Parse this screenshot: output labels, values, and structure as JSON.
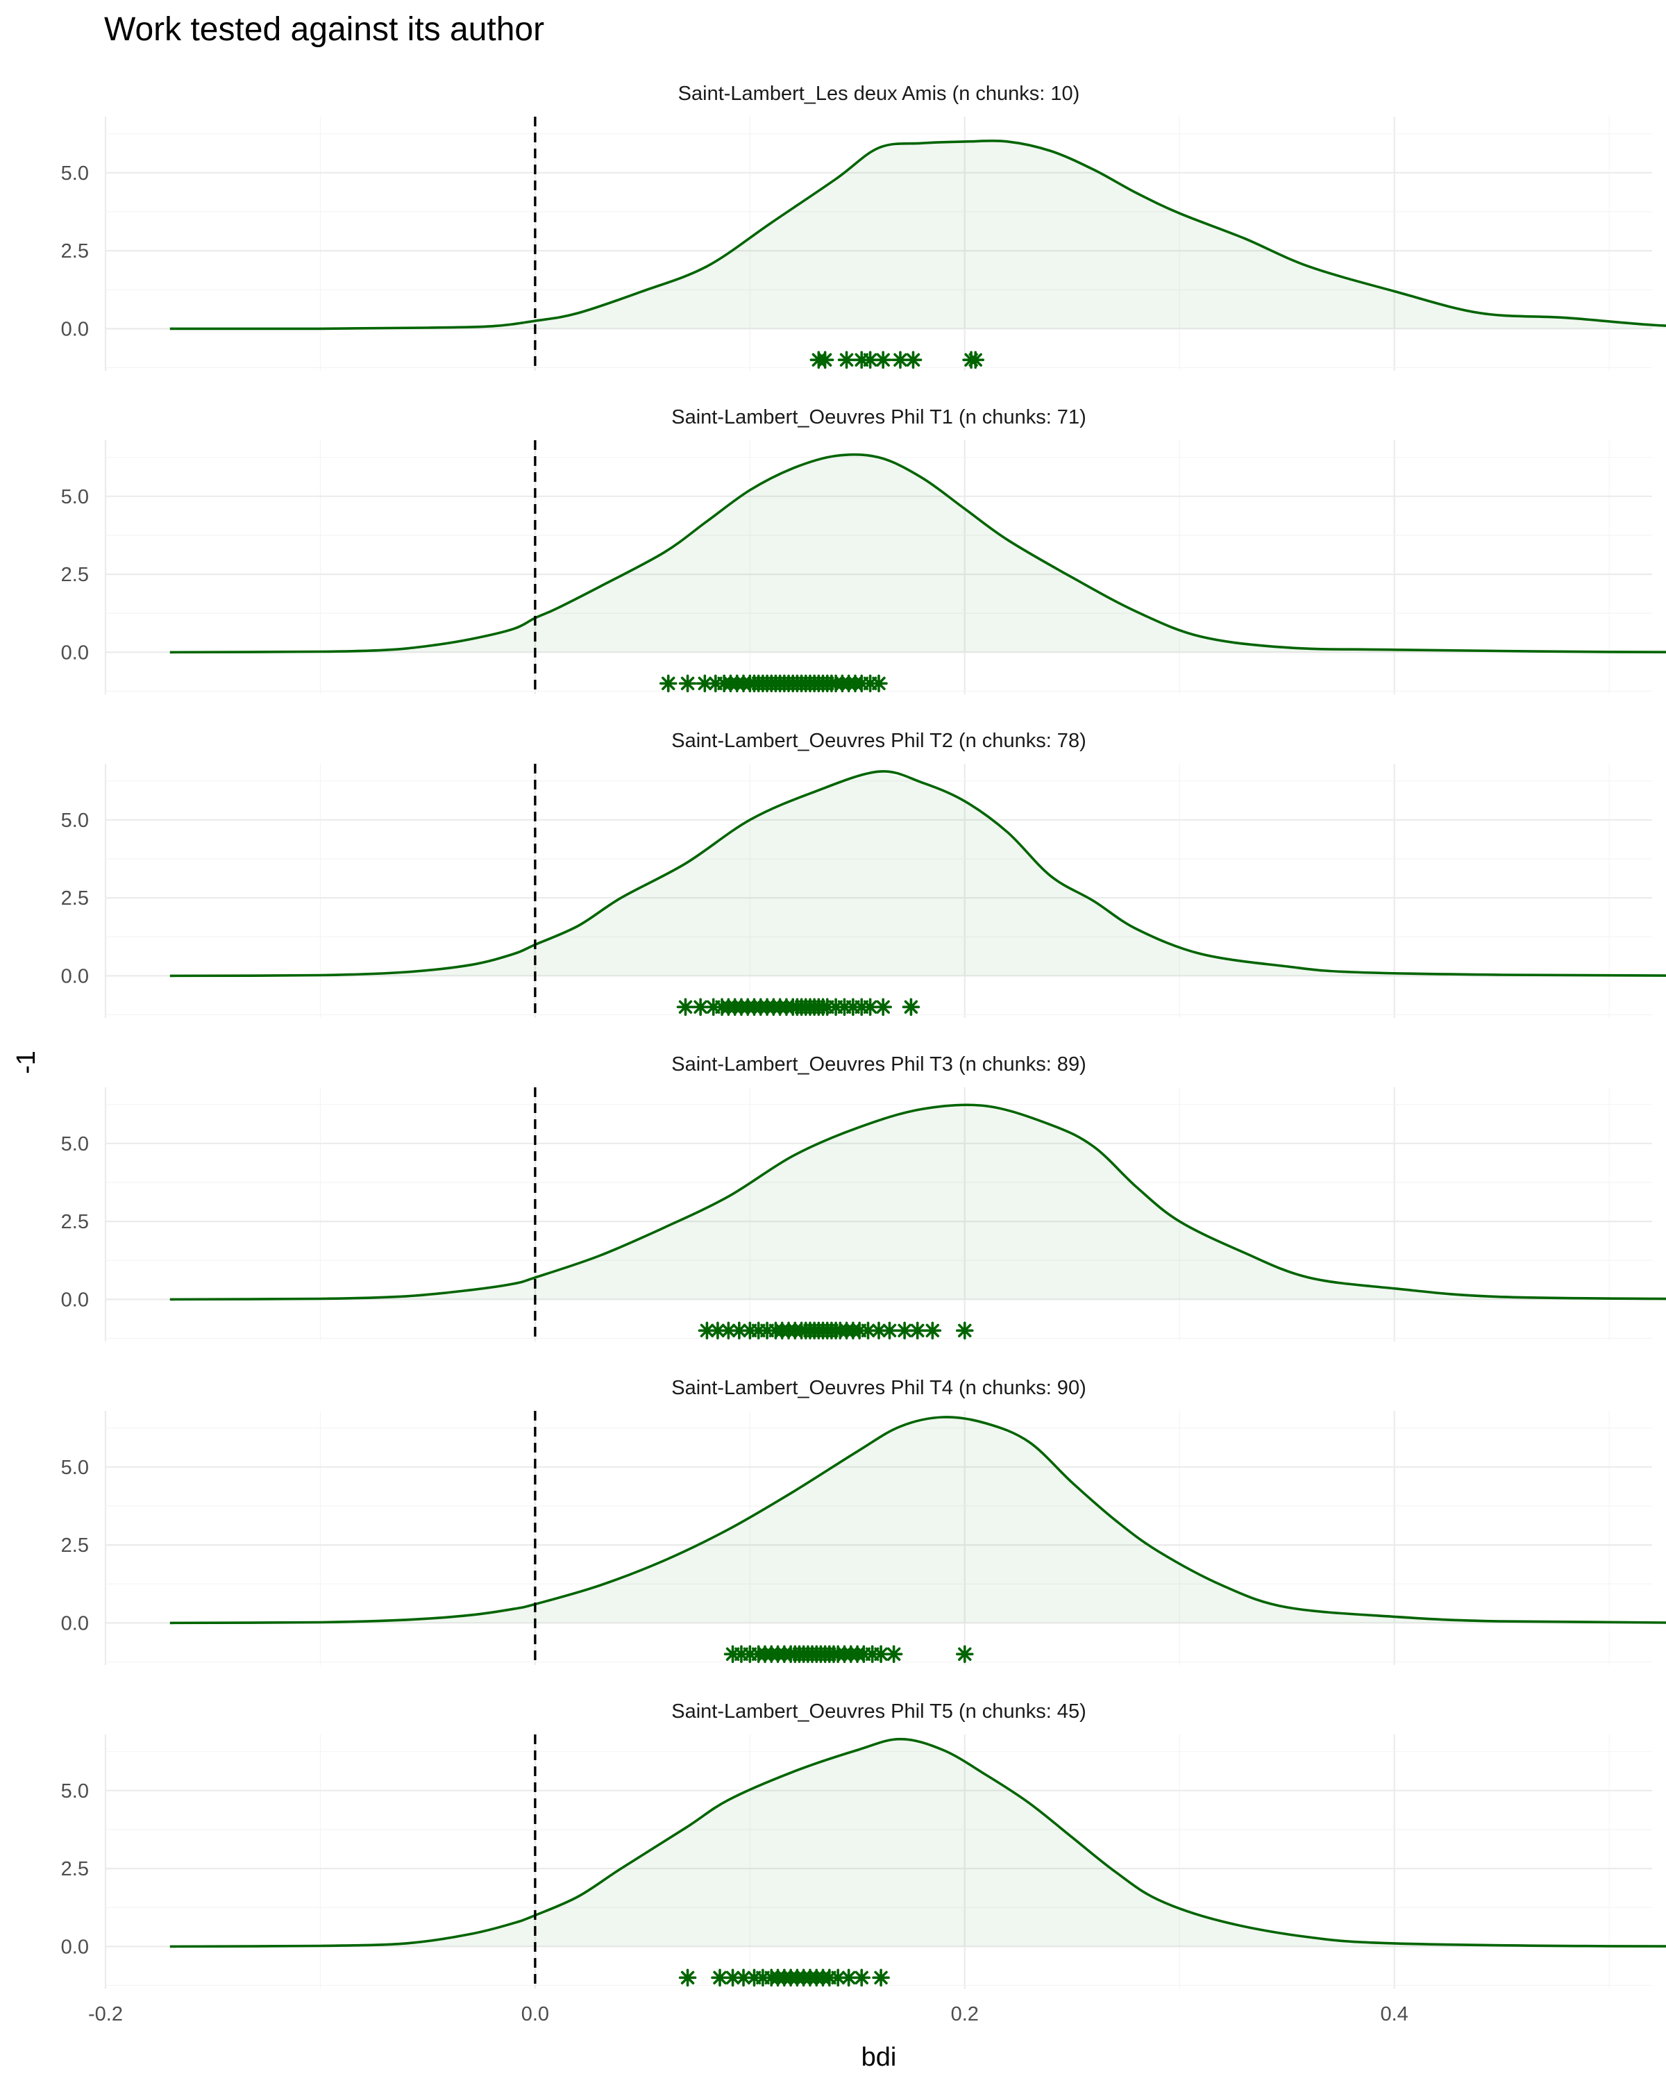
{
  "chart_data": {
    "type": "density",
    "title": "Work tested against its author",
    "xlabel": "bdi",
    "ylabel": "-1",
    "xlim": [
      -0.2,
      0.52
    ],
    "ylim": [
      -1.35,
      6.8
    ],
    "x_ticks": [
      -0.2,
      0.0,
      0.2,
      0.4
    ],
    "x_tick_labels": [
      "-0.2",
      "0.0",
      "0.2",
      "0.4"
    ],
    "y_ticks": [
      0,
      2.5,
      5
    ],
    "y_tick_labels": [
      "0.0",
      "2.5",
      "5.0"
    ],
    "reference_line_x": 0,
    "grid": true,
    "color": "#006400",
    "facets": [
      {
        "label": "Saint-Lambert_Les deux Amis (n chunks: 10)",
        "density": [
          [
            -0.17,
            0
          ],
          [
            -0.1,
            0
          ],
          [
            -0.05,
            0.03
          ],
          [
            -0.02,
            0.08
          ],
          [
            0,
            0.25
          ],
          [
            0.02,
            0.5
          ],
          [
            0.05,
            1.2
          ],
          [
            0.08,
            2.0
          ],
          [
            0.11,
            3.4
          ],
          [
            0.14,
            4.8
          ],
          [
            0.16,
            5.8
          ],
          [
            0.18,
            5.95
          ],
          [
            0.2,
            6.0
          ],
          [
            0.22,
            6.0
          ],
          [
            0.24,
            5.7
          ],
          [
            0.26,
            5.1
          ],
          [
            0.28,
            4.35
          ],
          [
            0.3,
            3.7
          ],
          [
            0.33,
            2.9
          ],
          [
            0.36,
            2.0
          ],
          [
            0.4,
            1.2
          ],
          [
            0.44,
            0.5
          ],
          [
            0.48,
            0.35
          ],
          [
            0.52,
            0.12
          ],
          [
            0.56,
            0.02
          ],
          [
            0.62,
            0
          ],
          [
            0.67,
            0
          ]
        ],
        "points": [
          0.132,
          0.135,
          0.145,
          0.152,
          0.156,
          0.162,
          0.17,
          0.176,
          0.205,
          0.203
        ]
      },
      {
        "label": "Saint-Lambert_Oeuvres Phil T1 (n chunks: 71)",
        "density": [
          [
            -0.17,
            0
          ],
          [
            -0.1,
            0.02
          ],
          [
            -0.07,
            0.07
          ],
          [
            -0.05,
            0.2
          ],
          [
            -0.03,
            0.42
          ],
          [
            -0.01,
            0.75
          ],
          [
            0,
            1.1
          ],
          [
            0.01,
            1.4
          ],
          [
            0.03,
            2.1
          ],
          [
            0.06,
            3.2
          ],
          [
            0.08,
            4.2
          ],
          [
            0.1,
            5.2
          ],
          [
            0.12,
            5.9
          ],
          [
            0.14,
            6.3
          ],
          [
            0.16,
            6.25
          ],
          [
            0.18,
            5.6
          ],
          [
            0.2,
            4.6
          ],
          [
            0.22,
            3.6
          ],
          [
            0.25,
            2.4
          ],
          [
            0.28,
            1.3
          ],
          [
            0.31,
            0.5
          ],
          [
            0.35,
            0.15
          ],
          [
            0.4,
            0.08
          ],
          [
            0.5,
            0.01
          ],
          [
            0.6,
            0
          ],
          [
            0.67,
            0
          ]
        ],
        "points": [
          0.062,
          0.071,
          0.079,
          0.084,
          0.088,
          0.091,
          0.094,
          0.097,
          0.1,
          0.102,
          0.104,
          0.106,
          0.108,
          0.11,
          0.112,
          0.114,
          0.116,
          0.118,
          0.12,
          0.122,
          0.124,
          0.126,
          0.128,
          0.13,
          0.132,
          0.134,
          0.136,
          0.138,
          0.14,
          0.143,
          0.146,
          0.149,
          0.152,
          0.156,
          0.16
        ]
      },
      {
        "label": "Saint-Lambert_Oeuvres Phil T2 (n chunks: 78)",
        "density": [
          [
            -0.17,
            0
          ],
          [
            -0.1,
            0.02
          ],
          [
            -0.06,
            0.12
          ],
          [
            -0.03,
            0.35
          ],
          [
            -0.01,
            0.7
          ],
          [
            0,
            1.0
          ],
          [
            0.02,
            1.6
          ],
          [
            0.04,
            2.5
          ],
          [
            0.07,
            3.6
          ],
          [
            0.1,
            5.0
          ],
          [
            0.13,
            5.9
          ],
          [
            0.16,
            6.55
          ],
          [
            0.18,
            6.2
          ],
          [
            0.2,
            5.6
          ],
          [
            0.22,
            4.6
          ],
          [
            0.24,
            3.2
          ],
          [
            0.26,
            2.4
          ],
          [
            0.28,
            1.5
          ],
          [
            0.31,
            0.7
          ],
          [
            0.35,
            0.3
          ],
          [
            0.38,
            0.12
          ],
          [
            0.45,
            0.03
          ],
          [
            0.55,
            0
          ],
          [
            0.67,
            0
          ]
        ],
        "points": [
          0.07,
          0.077,
          0.083,
          0.087,
          0.09,
          0.093,
          0.096,
          0.099,
          0.102,
          0.105,
          0.108,
          0.111,
          0.114,
          0.117,
          0.12,
          0.122,
          0.124,
          0.126,
          0.128,
          0.13,
          0.132,
          0.134,
          0.136,
          0.14,
          0.144,
          0.148,
          0.152,
          0.156,
          0.162,
          0.175
        ]
      },
      {
        "label": "Saint-Lambert_Oeuvres Phil T3 (n chunks: 89)",
        "density": [
          [
            -0.17,
            0
          ],
          [
            -0.1,
            0.02
          ],
          [
            -0.06,
            0.1
          ],
          [
            -0.03,
            0.3
          ],
          [
            -0.01,
            0.5
          ],
          [
            0,
            0.7
          ],
          [
            0.03,
            1.4
          ],
          [
            0.06,
            2.3
          ],
          [
            0.09,
            3.3
          ],
          [
            0.12,
            4.6
          ],
          [
            0.15,
            5.5
          ],
          [
            0.18,
            6.1
          ],
          [
            0.21,
            6.2
          ],
          [
            0.24,
            5.6
          ],
          [
            0.26,
            4.9
          ],
          [
            0.28,
            3.6
          ],
          [
            0.3,
            2.5
          ],
          [
            0.33,
            1.5
          ],
          [
            0.36,
            0.7
          ],
          [
            0.4,
            0.35
          ],
          [
            0.45,
            0.08
          ],
          [
            0.55,
            0.01
          ],
          [
            0.67,
            0
          ]
        ],
        "points": [
          0.08,
          0.085,
          0.09,
          0.095,
          0.1,
          0.104,
          0.108,
          0.112,
          0.115,
          0.118,
          0.121,
          0.124,
          0.126,
          0.128,
          0.13,
          0.132,
          0.134,
          0.136,
          0.138,
          0.14,
          0.142,
          0.145,
          0.148,
          0.151,
          0.155,
          0.16,
          0.165,
          0.172,
          0.178,
          0.185,
          0.2
        ]
      },
      {
        "label": "Saint-Lambert_Oeuvres Phil T4 (n chunks: 90)",
        "density": [
          [
            -0.17,
            0
          ],
          [
            -0.1,
            0.02
          ],
          [
            -0.06,
            0.1
          ],
          [
            -0.03,
            0.25
          ],
          [
            -0.01,
            0.45
          ],
          [
            0,
            0.6
          ],
          [
            0.03,
            1.2
          ],
          [
            0.06,
            2.0
          ],
          [
            0.09,
            3.0
          ],
          [
            0.12,
            4.2
          ],
          [
            0.15,
            5.5
          ],
          [
            0.17,
            6.3
          ],
          [
            0.19,
            6.6
          ],
          [
            0.21,
            6.4
          ],
          [
            0.23,
            5.8
          ],
          [
            0.25,
            4.5
          ],
          [
            0.27,
            3.3
          ],
          [
            0.29,
            2.3
          ],
          [
            0.32,
            1.2
          ],
          [
            0.35,
            0.5
          ],
          [
            0.4,
            0.2
          ],
          [
            0.45,
            0.05
          ],
          [
            0.55,
            0
          ],
          [
            0.67,
            0
          ]
        ],
        "points": [
          0.092,
          0.096,
          0.1,
          0.104,
          0.107,
          0.11,
          0.113,
          0.116,
          0.119,
          0.121,
          0.123,
          0.125,
          0.127,
          0.129,
          0.131,
          0.133,
          0.135,
          0.137,
          0.139,
          0.141,
          0.144,
          0.147,
          0.15,
          0.153,
          0.157,
          0.161,
          0.167,
          0.2
        ]
      },
      {
        "label": "Saint-Lambert_Oeuvres Phil T5 (n chunks: 45)",
        "density": [
          [
            -0.17,
            0
          ],
          [
            -0.1,
            0.02
          ],
          [
            -0.06,
            0.1
          ],
          [
            -0.03,
            0.4
          ],
          [
            -0.01,
            0.75
          ],
          [
            0,
            1.0
          ],
          [
            0.02,
            1.6
          ],
          [
            0.04,
            2.5
          ],
          [
            0.07,
            3.8
          ],
          [
            0.09,
            4.7
          ],
          [
            0.12,
            5.6
          ],
          [
            0.15,
            6.3
          ],
          [
            0.17,
            6.65
          ],
          [
            0.19,
            6.3
          ],
          [
            0.21,
            5.5
          ],
          [
            0.23,
            4.6
          ],
          [
            0.25,
            3.5
          ],
          [
            0.27,
            2.4
          ],
          [
            0.29,
            1.5
          ],
          [
            0.32,
            0.8
          ],
          [
            0.36,
            0.3
          ],
          [
            0.4,
            0.1
          ],
          [
            0.5,
            0.01
          ],
          [
            0.67,
            0
          ]
        ],
        "points": [
          0.071,
          0.086,
          0.092,
          0.097,
          0.102,
          0.106,
          0.11,
          0.113,
          0.116,
          0.119,
          0.122,
          0.125,
          0.128,
          0.131,
          0.134,
          0.137,
          0.141,
          0.146,
          0.152,
          0.161
        ]
      }
    ]
  }
}
